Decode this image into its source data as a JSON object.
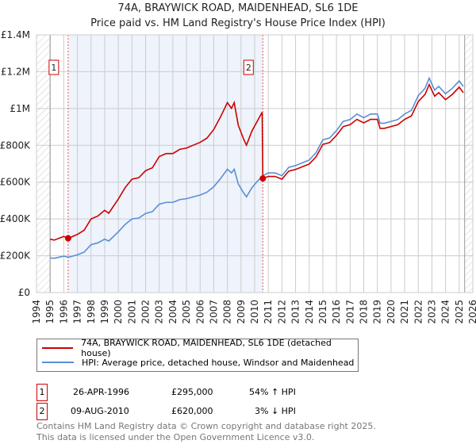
{
  "chart_data": {
    "type": "line",
    "title": "74A, BRAYWICK ROAD, MAIDENHEAD, SL6 1DE",
    "subtitle": "Price paid vs. HM Land Registry's House Price Index (HPI)",
    "xlim": [
      1994,
      2026
    ],
    "ylim": [
      0,
      1400000
    ],
    "y_ticks": [
      0,
      200000,
      400000,
      600000,
      800000,
      1000000,
      1200000,
      1400000
    ],
    "y_tick_labels": [
      "£0",
      "£200K",
      "£400K",
      "£600K",
      "£800K",
      "£1M",
      "£1.2M",
      "£1.4M"
    ],
    "x_tick_labels": [
      "1994",
      "1995",
      "1996",
      "1997",
      "1998",
      "1999",
      "2000",
      "2001",
      "2002",
      "2003",
      "2004",
      "2005",
      "2006",
      "2007",
      "2008",
      "2009",
      "2010",
      "2011",
      "2012",
      "2013",
      "2014",
      "2015",
      "2016",
      "2017",
      "2018",
      "2019",
      "2020",
      "2021",
      "2022",
      "2023",
      "2024",
      "2025",
      "2026"
    ],
    "grid": true,
    "shaded_range": [
      1996.32,
      2010.6
    ],
    "hatched_ranges": [
      [
        1994,
        1995
      ],
      [
        2025.4,
        2026
      ]
    ],
    "series": [
      {
        "name": "74A, BRAYWICK ROAD, MAIDENHEAD, SL6 1DE (detached house)",
        "color": "#cc0000",
        "x": [
          1995,
          1995.3,
          1996,
          1996.32,
          1996.5,
          1997,
          1997.5,
          1998,
          1998.5,
          1999,
          1999.3,
          2000,
          2000.5,
          2001,
          2001.5,
          2002,
          2002.5,
          2003,
          2003.5,
          2004,
          2004.5,
          2005,
          2005.5,
          2006,
          2006.5,
          2007,
          2007.5,
          2008,
          2008.3,
          2008.5,
          2008.8,
          2009.2,
          2009.4,
          2009.8,
          2010.2,
          2010.55,
          2010.6,
          2011,
          2011.5,
          2012,
          2012.5,
          2013,
          2013.5,
          2014,
          2014.5,
          2015,
          2015.5,
          2016,
          2016.5,
          2017,
          2017.5,
          2018,
          2018.5,
          2019,
          2019.2,
          2019.5,
          2020,
          2020.5,
          2021,
          2021.5,
          2022,
          2022.5,
          2022.8,
          2023.2,
          2023.5,
          2024,
          2024.5,
          2025,
          2025.3
        ],
        "y": [
          290000,
          285000,
          305000,
          295000,
          300000,
          316000,
          339000,
          400000,
          416000,
          447000,
          431000,
          508000,
          570000,
          616000,
          624000,
          662000,
          678000,
          739000,
          755000,
          755000,
          778000,
          785000,
          801000,
          816000,
          839000,
          886000,
          955000,
          1032000,
          1001000,
          1032000,
          909000,
          832000,
          801000,
          878000,
          932000,
          980000,
          620000,
          631000,
          631000,
          616000,
          660000,
          669000,
          684000,
          698000,
          737000,
          805000,
          815000,
          854000,
          902000,
          912000,
          941000,
          922000,
          941000,
          941000,
          892000,
          892000,
          902000,
          912000,
          941000,
          960000,
          1038000,
          1077000,
          1130000,
          1067000,
          1086000,
          1048000,
          1077000,
          1116000,
          1086000
        ]
      },
      {
        "name": "HPI: Average price, detached house, Windsor and Maidenhead",
        "color": "#5b8fd4",
        "x": [
          1995,
          1995.3,
          1996,
          1996.32,
          1996.5,
          1997,
          1997.5,
          1998,
          1998.5,
          1999,
          1999.3,
          2000,
          2000.5,
          2001,
          2001.5,
          2002,
          2002.5,
          2003,
          2003.5,
          2004,
          2004.5,
          2005,
          2005.5,
          2006,
          2006.5,
          2007,
          2007.5,
          2008,
          2008.3,
          2008.5,
          2008.8,
          2009.2,
          2009.4,
          2009.8,
          2010.2,
          2010.55,
          2010.6,
          2011,
          2011.5,
          2012,
          2012.5,
          2013,
          2013.5,
          2014,
          2014.5,
          2015,
          2015.5,
          2016,
          2016.5,
          2017,
          2017.5,
          2018,
          2018.5,
          2019,
          2019.2,
          2019.5,
          2020,
          2020.5,
          2021,
          2021.5,
          2022,
          2022.5,
          2022.8,
          2023.2,
          2023.5,
          2024,
          2024.5,
          2025,
          2025.3
        ],
        "y": [
          188000,
          186000,
          198000,
          192000,
          195000,
          205000,
          220000,
          260000,
          270000,
          290000,
          280000,
          330000,
          370000,
          400000,
          405000,
          430000,
          440000,
          480000,
          490000,
          490000,
          505000,
          510000,
          520000,
          530000,
          545000,
          575000,
          620000,
          670000,
          650000,
          670000,
          590000,
          540000,
          520000,
          570000,
          605000,
          630000,
          635000,
          650000,
          650000,
          635000,
          680000,
          690000,
          705000,
          720000,
          760000,
          830000,
          840000,
          880000,
          930000,
          940000,
          970000,
          950000,
          970000,
          970000,
          920000,
          920000,
          930000,
          940000,
          970000,
          990000,
          1070000,
          1110000,
          1165000,
          1100000,
          1120000,
          1080000,
          1110000,
          1150000,
          1120000
        ]
      }
    ],
    "markers": [
      {
        "label": "1",
        "x": 1996.32,
        "y": 295000
      },
      {
        "label": "2",
        "x": 2010.6,
        "y": 620000
      }
    ]
  },
  "legend": {
    "red": "74A, BRAYWICK ROAD, MAIDENHEAD, SL6 1DE (detached house)",
    "blue": "HPI: Average price, detached house, Windsor and Maidenhead"
  },
  "transactions": [
    {
      "num": "1",
      "date": "26-APR-1996",
      "price": "£295,000",
      "hpi": "54% ↑ HPI"
    },
    {
      "num": "2",
      "date": "09-AUG-2010",
      "price": "£620,000",
      "hpi": "3% ↓ HPI"
    }
  ],
  "footer": {
    "line1": "Contains HM Land Registry data © Crown copyright and database right 2025.",
    "line2": "This data is licensed under the Open Government Licence v3.0."
  }
}
